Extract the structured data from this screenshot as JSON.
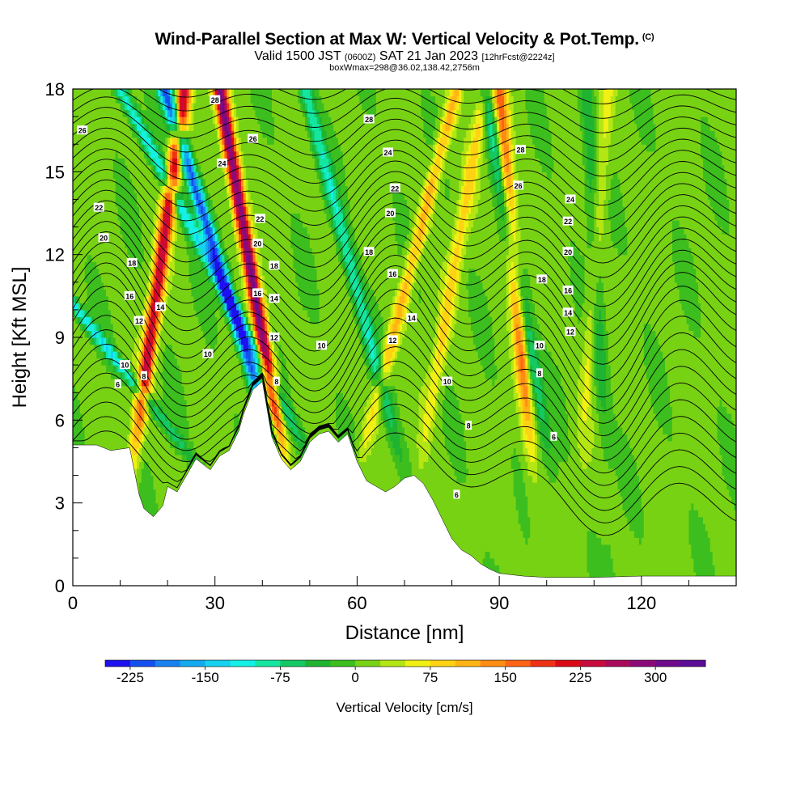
{
  "title_main": "Wind-Parallel Section at Max W: Vertical Velocity & Pot.Temp.",
  "title_copyright": "(C)",
  "subtitle": {
    "valid": "Valid 1500 JST",
    "utc": "(0600Z)",
    "date": "SAT 21 Jan 2023",
    "forecast": "[12hrFcst@2224z]"
  },
  "box_info": "boxWmax=298@36.02,138.42,2756m",
  "chart_data": {
    "type": "heatmap",
    "xlabel": "Distance [nm]",
    "ylabel": "Height [Kft MSL]",
    "xlim": [
      0,
      140
    ],
    "ylim": [
      0,
      18
    ],
    "x_ticks": [
      0,
      30,
      60,
      90,
      120
    ],
    "y_ticks": [
      0,
      3,
      6,
      9,
      12,
      15,
      18
    ],
    "colorbar": {
      "label": "Vertical Velocity [cm/s]",
      "range": [
        -250,
        350
      ],
      "step": 25,
      "tick_labels": [
        "-225",
        "-150",
        "-75",
        "0",
        "75",
        "150",
        "225",
        "300"
      ],
      "colors": [
        "#1e10f0",
        "#1450f0",
        "#1a82f0",
        "#14aaf0",
        "#14d2f0",
        "#14f0e6",
        "#14e6a0",
        "#14c864",
        "#1eb432",
        "#3cbe1e",
        "#78d214",
        "#b4e614",
        "#f0f014",
        "#ffd214",
        "#ffb414",
        "#ff8c14",
        "#ff6414",
        "#f03214",
        "#dc0a14",
        "#c80a3c",
        "#aa0a5a",
        "#8c0a78",
        "#6e0a8c",
        "#5a0a96"
      ]
    },
    "terrain_kft": [
      [
        0,
        5.1
      ],
      [
        5,
        5.1
      ],
      [
        8,
        4.9
      ],
      [
        12,
        5.0
      ],
      [
        14,
        3.3
      ],
      [
        15,
        2.8
      ],
      [
        17,
        2.5
      ],
      [
        19,
        2.9
      ],
      [
        20,
        3.6
      ],
      [
        22,
        3.4
      ],
      [
        24,
        4.0
      ],
      [
        26,
        4.6
      ],
      [
        29,
        4.2
      ],
      [
        31,
        4.7
      ],
      [
        33,
        4.9
      ],
      [
        35,
        5.6
      ],
      [
        36,
        6.2
      ],
      [
        38,
        7.1
      ],
      [
        40,
        7.4
      ],
      [
        41,
        6.4
      ],
      [
        42,
        5.4
      ],
      [
        44,
        4.6
      ],
      [
        46,
        4.2
      ],
      [
        48,
        4.5
      ],
      [
        50,
        5.2
      ],
      [
        52,
        5.5
      ],
      [
        54,
        5.6
      ],
      [
        56,
        5.2
      ],
      [
        58,
        5.5
      ],
      [
        60,
        4.5
      ],
      [
        62,
        3.8
      ],
      [
        64,
        3.6
      ],
      [
        66,
        3.4
      ],
      [
        68,
        3.6
      ],
      [
        70,
        3.9
      ],
      [
        72,
        4.0
      ],
      [
        74,
        3.7
      ],
      [
        76,
        3.1
      ],
      [
        78,
        2.4
      ],
      [
        80,
        1.7
      ],
      [
        82,
        1.3
      ],
      [
        84,
        1.1
      ],
      [
        86,
        0.8
      ],
      [
        88,
        0.6
      ],
      [
        90,
        0.45
      ],
      [
        95,
        0.35
      ],
      [
        100,
        0.3
      ],
      [
        110,
        0.3
      ],
      [
        120,
        0.35
      ],
      [
        130,
        0.35
      ],
      [
        140,
        0.35
      ]
    ],
    "updrafts": [
      {
        "x_base": 14,
        "lean": 0.8,
        "w": 225
      },
      {
        "x_base": 43,
        "lean": -1.0,
        "w": 300
      },
      {
        "x_base": 63,
        "lean": 1.5,
        "w": 100
      },
      {
        "x_base": 75,
        "lean": 1.0,
        "w": 75
      },
      {
        "x_base": 96,
        "lean": -0.5,
        "w": 150
      },
      {
        "x_base": 108,
        "lean": 0.4,
        "w": 50
      }
    ],
    "downdrafts": [
      {
        "x_base": 19,
        "lean": -4.5,
        "w": -125
      },
      {
        "x_base": 41,
        "lean": -1.8,
        "w": -225
      },
      {
        "x_base": 46,
        "lean": -3.0,
        "w": -125
      },
      {
        "x_base": 67,
        "lean": -1.5,
        "w": -100
      },
      {
        "x_base": 99,
        "lean": -1.0,
        "w": -100
      },
      {
        "x_base": 112,
        "lean": -0.3,
        "w": -50
      }
    ],
    "theta_labels": [
      {
        "text": "6",
        "x": 9.5,
        "y": 7.3
      },
      {
        "text": "10",
        "x": 11,
        "y": 8.0
      },
      {
        "text": "8",
        "x": 15,
        "y": 7.6
      },
      {
        "text": "12",
        "x": 14,
        "y": 9.6
      },
      {
        "text": "14",
        "x": 18.5,
        "y": 10.1
      },
      {
        "text": "16",
        "x": 12,
        "y": 10.5
      },
      {
        "text": "18",
        "x": 12.5,
        "y": 11.7
      },
      {
        "text": "20",
        "x": 6.5,
        "y": 12.6
      },
      {
        "text": "22",
        "x": 5.5,
        "y": 13.7
      },
      {
        "text": "26",
        "x": 2,
        "y": 16.5
      },
      {
        "text": "28",
        "x": 30,
        "y": 17.6
      },
      {
        "text": "24",
        "x": 31.5,
        "y": 15.3
      },
      {
        "text": "26",
        "x": 38,
        "y": 16.2
      },
      {
        "text": "10",
        "x": 28.5,
        "y": 8.4
      },
      {
        "text": "22",
        "x": 39.5,
        "y": 13.3
      },
      {
        "text": "20",
        "x": 39,
        "y": 12.4
      },
      {
        "text": "16",
        "x": 39,
        "y": 10.6
      },
      {
        "text": "18",
        "x": 42.5,
        "y": 11.6
      },
      {
        "text": "14",
        "x": 42.5,
        "y": 10.4
      },
      {
        "text": "12",
        "x": 42.5,
        "y": 9.0
      },
      {
        "text": "8",
        "x": 43,
        "y": 7.4
      },
      {
        "text": "10",
        "x": 52.5,
        "y": 8.7
      },
      {
        "text": "28",
        "x": 62.5,
        "y": 16.9
      },
      {
        "text": "24",
        "x": 66.5,
        "y": 15.7
      },
      {
        "text": "22",
        "x": 68,
        "y": 14.4
      },
      {
        "text": "20",
        "x": 67,
        "y": 13.5
      },
      {
        "text": "18",
        "x": 62.5,
        "y": 12.1
      },
      {
        "text": "16",
        "x": 67.5,
        "y": 11.3
      },
      {
        "text": "14",
        "x": 71.5,
        "y": 9.7
      },
      {
        "text": "12",
        "x": 67.5,
        "y": 8.9
      },
      {
        "text": "10",
        "x": 79,
        "y": 7.4
      },
      {
        "text": "8",
        "x": 83.5,
        "y": 5.8
      },
      {
        "text": "6",
        "x": 81,
        "y": 3.3
      },
      {
        "text": "28",
        "x": 94.5,
        "y": 15.8
      },
      {
        "text": "26",
        "x": 94,
        "y": 14.5
      },
      {
        "text": "24",
        "x": 105,
        "y": 14.0
      },
      {
        "text": "22",
        "x": 104.5,
        "y": 13.2
      },
      {
        "text": "20",
        "x": 104.5,
        "y": 12.1
      },
      {
        "text": "18",
        "x": 99,
        "y": 11.1
      },
      {
        "text": "16",
        "x": 104.5,
        "y": 10.7
      },
      {
        "text": "14",
        "x": 104.5,
        "y": 9.9
      },
      {
        "text": "12",
        "x": 105,
        "y": 9.2
      },
      {
        "text": "10",
        "x": 98.5,
        "y": 8.7
      },
      {
        "text": "8",
        "x": 98.5,
        "y": 7.7
      },
      {
        "text": "6",
        "x": 101.5,
        "y": 5.4
      }
    ]
  }
}
